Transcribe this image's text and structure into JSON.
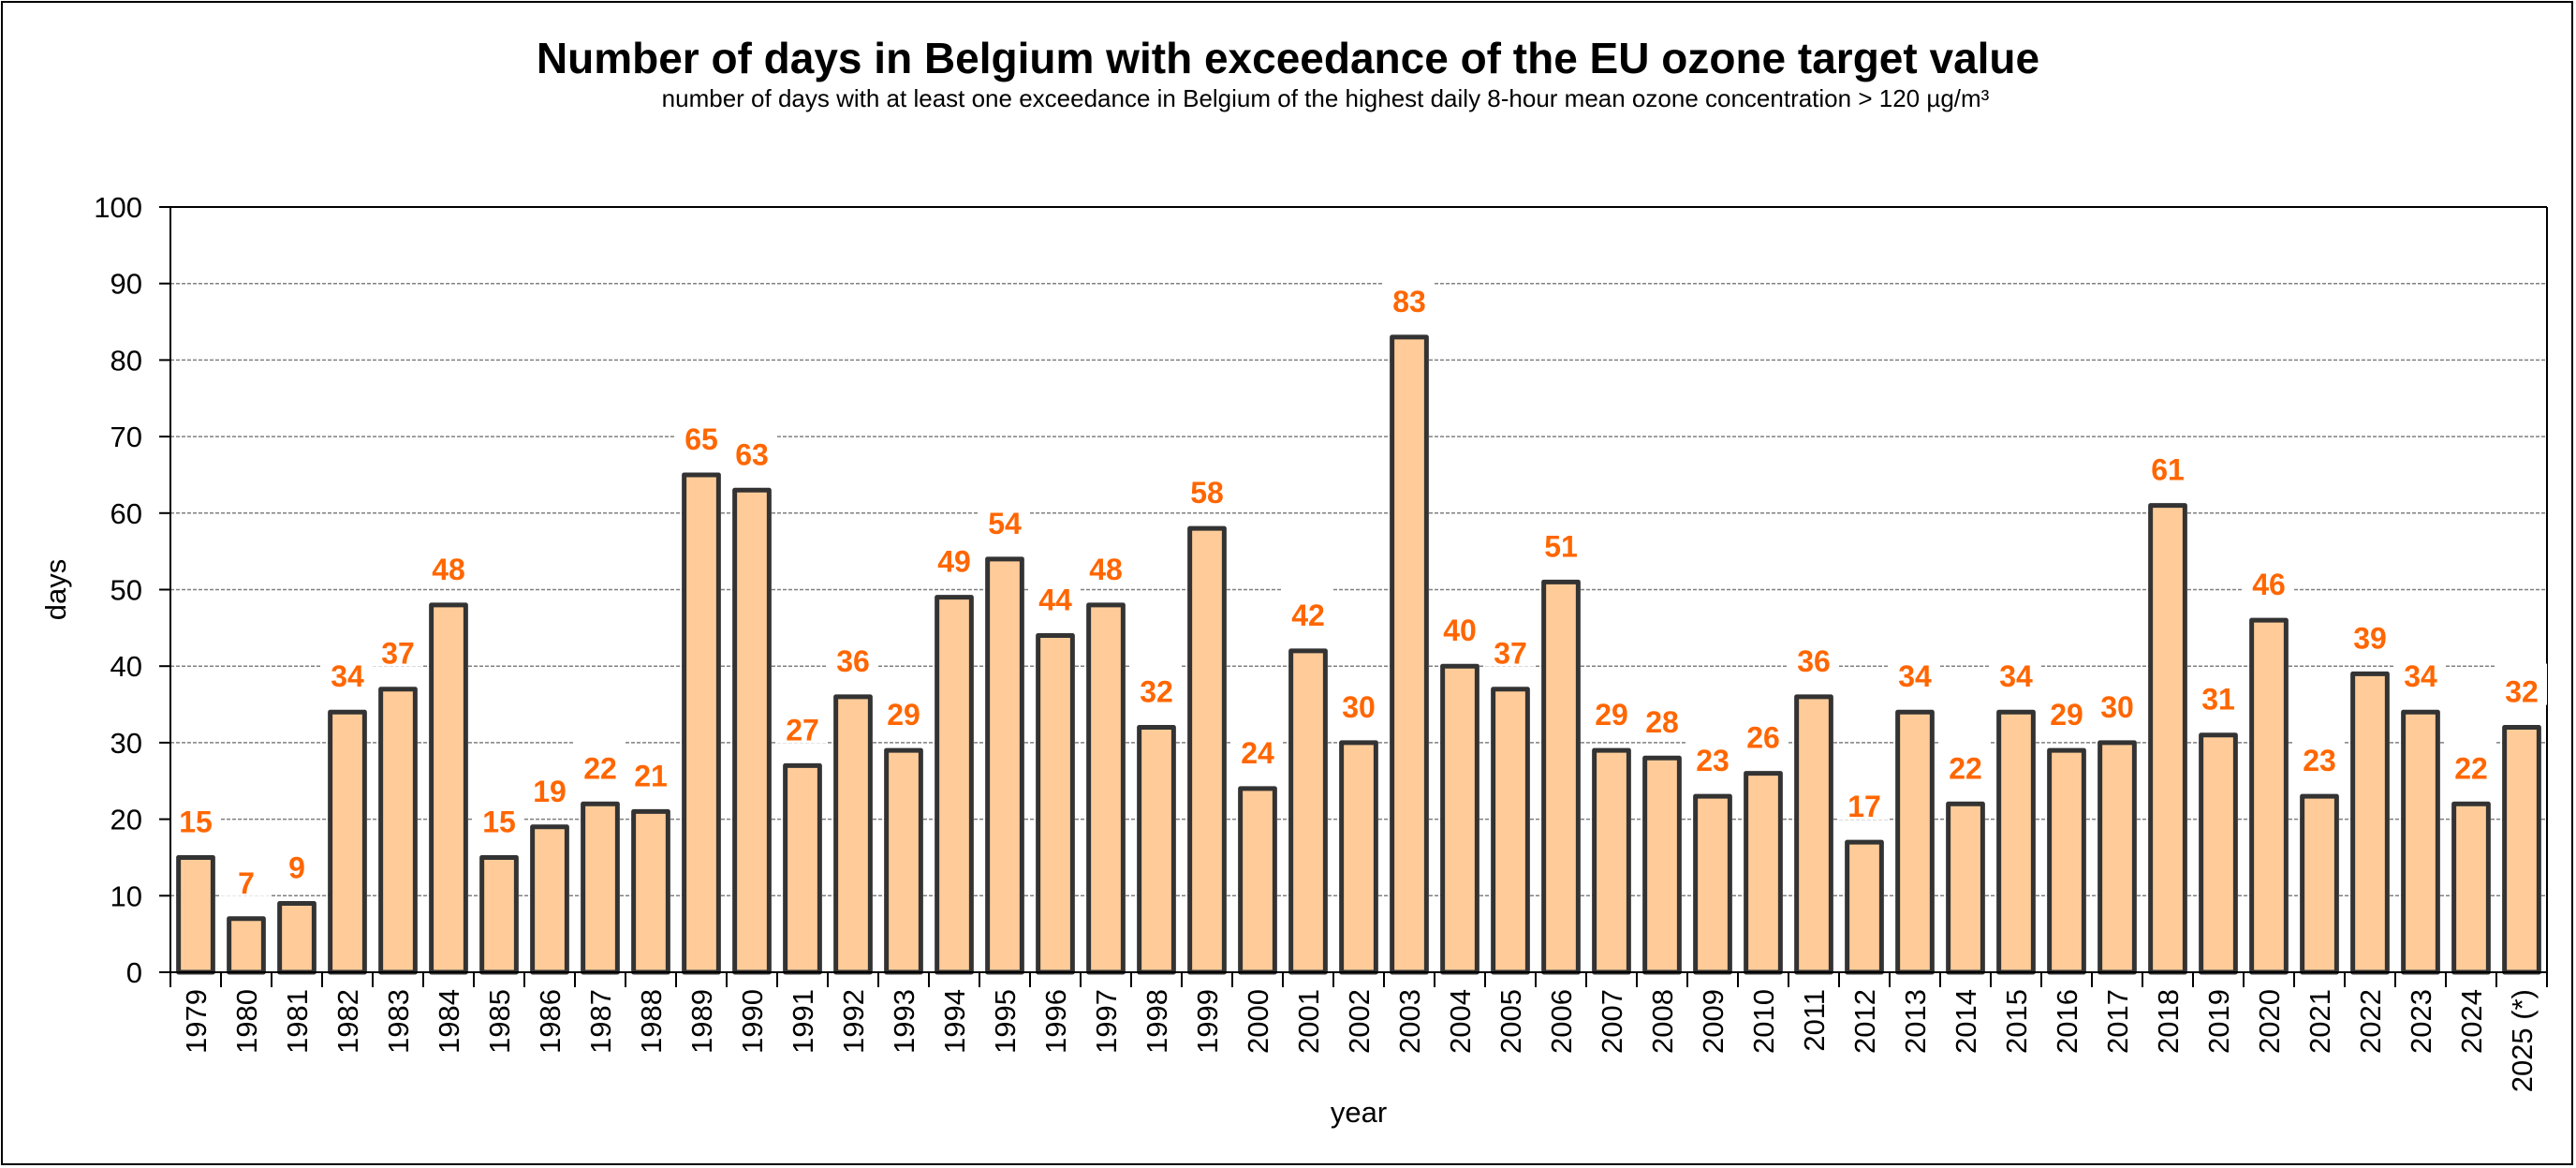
{
  "chart_data": {
    "type": "bar",
    "title": "Number of days in Belgium with exceedance of the EU ozone target value",
    "subtitle": "number of days with at least one exceedance in Belgium of the highest daily 8-hour mean ozone concentration > 120 µg/m³",
    "xlabel": "year",
    "ylabel": "days",
    "ylim": [
      0,
      100
    ],
    "yticks": [
      0,
      10,
      20,
      30,
      40,
      50,
      60,
      70,
      80,
      90,
      100
    ],
    "grid": true,
    "categories": [
      "1979",
      "1980",
      "1981",
      "1982",
      "1983",
      "1984",
      "1985",
      "1986",
      "1987",
      "1988",
      "1989",
      "1990",
      "1991",
      "1992",
      "1993",
      "1994",
      "1995",
      "1996",
      "1997",
      "1998",
      "1999",
      "2000",
      "2001",
      "2002",
      "2003",
      "2004",
      "2005",
      "2006",
      "2007",
      "2008",
      "2009",
      "2010",
      "2011",
      "2012",
      "2013",
      "2014",
      "2015",
      "2016",
      "2017",
      "2018",
      "2019",
      "2020",
      "2021",
      "2022",
      "2023",
      "2024",
      "2025 (*)"
    ],
    "values": [
      15,
      7,
      9,
      34,
      37,
      48,
      15,
      19,
      22,
      21,
      65,
      63,
      27,
      36,
      29,
      49,
      54,
      44,
      48,
      32,
      58,
      24,
      42,
      30,
      83,
      40,
      37,
      51,
      29,
      28,
      23,
      26,
      36,
      17,
      34,
      22,
      34,
      29,
      30,
      61,
      31,
      46,
      23,
      39,
      34,
      22,
      32
    ],
    "colors": {
      "bar_fill": "#FFCC99",
      "bar_stroke": "#333333",
      "label": "#FF6600",
      "grid": "#808080"
    }
  }
}
